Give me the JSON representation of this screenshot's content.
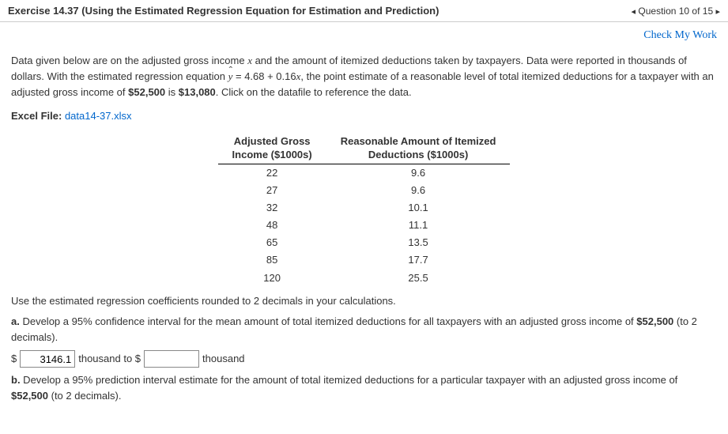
{
  "header": {
    "title": "Exercise 14.37 (Using the Estimated Regression Equation for Estimation and Prediction)",
    "nav_prev": "◂",
    "nav_text": "Question 10 of 15",
    "nav_next": "▸"
  },
  "checkwork_label": "Check My Work",
  "intro": {
    "p1a": "Data given below are on the adjusted gross income ",
    "var_x": "x",
    "p1b": " and the amount of itemized deductions taken by taxpayers. Data were reported in thousands of dollars. With the estimated regression equation ",
    "eq_y": "y",
    "eq_rest": " = 4.68 + 0.16",
    "eq_x": "x",
    "p1c": ", the point estimate of a reasonable level of total itemized deductions for a taxpayer with an adjusted gross income of ",
    "amt1": "$52,500",
    "p1d": " is ",
    "amt2": "$13,080",
    "p1e": ". Click on the datafile to reference the data."
  },
  "excel": {
    "label": "Excel File:",
    "link": "data14-37.xlsx"
  },
  "table": {
    "h1a": "Adjusted Gross",
    "h1b": "Income ($1000s)",
    "h2a": "Reasonable Amount of Itemized",
    "h2b": "Deductions ($1000s)",
    "rows": [
      [
        "22",
        "9.6"
      ],
      [
        "27",
        "9.6"
      ],
      [
        "32",
        "10.1"
      ],
      [
        "48",
        "11.1"
      ],
      [
        "65",
        "13.5"
      ],
      [
        "85",
        "17.7"
      ],
      [
        "120",
        "25.5"
      ]
    ]
  },
  "instr": "Use the estimated regression coefficients rounded to 2 decimals in your calculations.",
  "partA": {
    "label": "a.",
    "text1": " Develop a 95% confidence interval for the mean amount of total itemized deductions for all taxpayers with an adjusted gross income of ",
    "amt": "$52,500",
    "text2": " (to 2 decimals)."
  },
  "answer": {
    "dollar": "$",
    "val1": "3146.1",
    "mid": "thousand to $",
    "val2": "",
    "end": "thousand"
  },
  "partB": {
    "label": "b.",
    "text1": " Develop a 95% prediction interval estimate for the amount of total itemized deductions for a particular taxpayer with an adjusted gross income of ",
    "amt": "$52,500",
    "text2": " (to 2 decimals)."
  }
}
